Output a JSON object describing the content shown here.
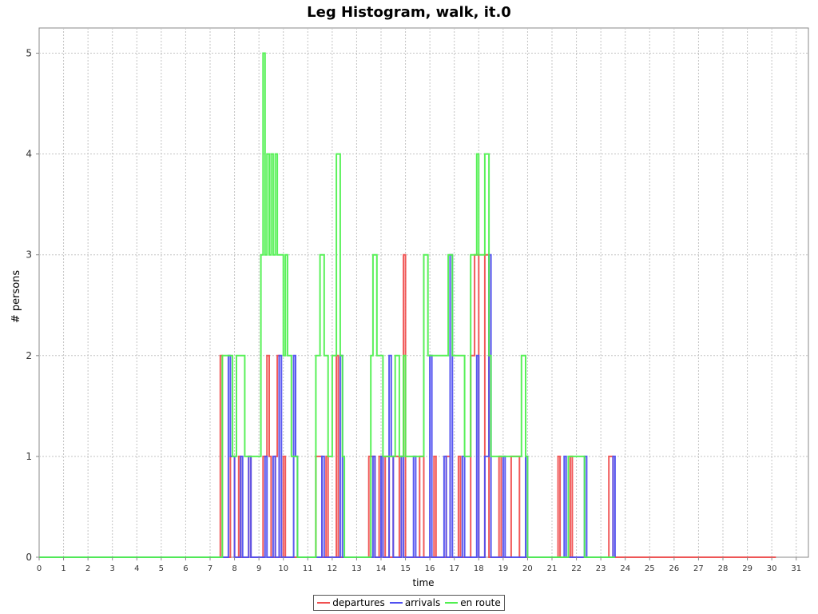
{
  "chart_data": {
    "type": "line",
    "step": true,
    "title": "Leg Histogram, walk, it.0",
    "xlabel": "time",
    "ylabel": "# persons",
    "xlim": [
      0,
      31.5
    ],
    "ylim": [
      0,
      5.25
    ],
    "xticks": [
      0,
      1,
      2,
      3,
      4,
      5,
      6,
      7,
      8,
      9,
      10,
      11,
      12,
      13,
      14,
      15,
      16,
      17,
      18,
      19,
      20,
      21,
      22,
      23,
      24,
      25,
      26,
      27,
      28,
      29,
      30,
      31
    ],
    "yticks": [
      0,
      1,
      2,
      3,
      4,
      5
    ],
    "grid": true,
    "legend_position": "bottom",
    "series": [
      {
        "name": "departures",
        "color": "#f05050",
        "points": [
          [
            0,
            0
          ],
          [
            7.42,
            2
          ],
          [
            7.5,
            0
          ],
          [
            7.83,
            1
          ],
          [
            8.0,
            0
          ],
          [
            8.17,
            1
          ],
          [
            8.25,
            0
          ],
          [
            8.58,
            1
          ],
          [
            8.67,
            0
          ],
          [
            9.17,
            1
          ],
          [
            9.33,
            2
          ],
          [
            9.42,
            1
          ],
          [
            9.5,
            0
          ],
          [
            9.67,
            1
          ],
          [
            9.75,
            2
          ],
          [
            9.83,
            0
          ],
          [
            10.0,
            1
          ],
          [
            10.08,
            0
          ],
          [
            11.33,
            1
          ],
          [
            11.58,
            0
          ],
          [
            11.75,
            1
          ],
          [
            11.83,
            0
          ],
          [
            12.17,
            2
          ],
          [
            12.25,
            0
          ],
          [
            13.5,
            1
          ],
          [
            13.75,
            0
          ],
          [
            13.92,
            1
          ],
          [
            14.08,
            0
          ],
          [
            14.17,
            1
          ],
          [
            14.33,
            0
          ],
          [
            14.5,
            1
          ],
          [
            14.75,
            0
          ],
          [
            14.83,
            1
          ],
          [
            14.92,
            3
          ],
          [
            15.0,
            0
          ],
          [
            15.58,
            1
          ],
          [
            15.75,
            0
          ],
          [
            16.17,
            1
          ],
          [
            16.25,
            0
          ],
          [
            16.67,
            1
          ],
          [
            16.83,
            0
          ],
          [
            17.17,
            1
          ],
          [
            17.25,
            0
          ],
          [
            17.67,
            2
          ],
          [
            17.83,
            3
          ],
          [
            18.0,
            0
          ],
          [
            18.25,
            3
          ],
          [
            18.42,
            0
          ],
          [
            18.83,
            1
          ],
          [
            18.92,
            0
          ],
          [
            19.33,
            1
          ],
          [
            19.67,
            0
          ],
          [
            21.25,
            1
          ],
          [
            21.33,
            0
          ],
          [
            21.75,
            1
          ],
          [
            21.83,
            0
          ],
          [
            23.33,
            1
          ],
          [
            23.5,
            0
          ],
          [
            30.17,
            0
          ]
        ]
      },
      {
        "name": "arrivals",
        "color": "#5050f0",
        "points": [
          [
            0,
            0
          ],
          [
            7.75,
            2
          ],
          [
            7.83,
            1
          ],
          [
            8.0,
            0
          ],
          [
            8.25,
            1
          ],
          [
            8.33,
            0
          ],
          [
            8.58,
            1
          ],
          [
            8.67,
            0
          ],
          [
            9.25,
            1
          ],
          [
            9.33,
            0
          ],
          [
            9.58,
            1
          ],
          [
            9.67,
            0
          ],
          [
            9.83,
            2
          ],
          [
            9.92,
            0
          ],
          [
            10.42,
            2
          ],
          [
            10.5,
            1
          ],
          [
            10.58,
            0
          ],
          [
            11.58,
            1
          ],
          [
            11.67,
            0
          ],
          [
            12.33,
            2
          ],
          [
            12.42,
            0
          ],
          [
            13.67,
            1
          ],
          [
            13.75,
            0
          ],
          [
            14.0,
            1
          ],
          [
            14.08,
            0
          ],
          [
            14.33,
            2
          ],
          [
            14.42,
            1
          ],
          [
            14.5,
            0
          ],
          [
            14.83,
            1
          ],
          [
            14.92,
            0
          ],
          [
            15.33,
            1
          ],
          [
            15.42,
            0
          ],
          [
            16.0,
            2
          ],
          [
            16.08,
            0
          ],
          [
            16.58,
            1
          ],
          [
            16.67,
            0
          ],
          [
            16.83,
            3
          ],
          [
            16.92,
            0
          ],
          [
            17.33,
            1
          ],
          [
            17.42,
            0
          ],
          [
            17.92,
            2
          ],
          [
            18.0,
            0
          ],
          [
            18.25,
            1
          ],
          [
            18.42,
            3
          ],
          [
            18.5,
            0
          ],
          [
            19.0,
            1
          ],
          [
            19.08,
            0
          ],
          [
            19.92,
            1
          ],
          [
            20.0,
            0
          ],
          [
            21.5,
            1
          ],
          [
            21.58,
            0
          ],
          [
            22.33,
            1
          ],
          [
            22.42,
            0
          ],
          [
            23.5,
            1
          ],
          [
            23.58,
            0
          ]
        ]
      },
      {
        "name": "en route",
        "color": "#50f050",
        "points": [
          [
            0,
            0
          ],
          [
            7.5,
            2
          ],
          [
            7.92,
            1
          ],
          [
            8.08,
            2
          ],
          [
            8.42,
            1
          ],
          [
            8.67,
            1
          ],
          [
            9.08,
            3
          ],
          [
            9.17,
            5
          ],
          [
            9.25,
            3
          ],
          [
            9.33,
            4
          ],
          [
            9.42,
            3
          ],
          [
            9.5,
            4
          ],
          [
            9.58,
            3
          ],
          [
            9.67,
            4
          ],
          [
            9.75,
            3
          ],
          [
            10.0,
            2
          ],
          [
            10.08,
            3
          ],
          [
            10.17,
            2
          ],
          [
            10.33,
            1
          ],
          [
            10.58,
            0
          ],
          [
            11.33,
            2
          ],
          [
            11.5,
            3
          ],
          [
            11.67,
            2
          ],
          [
            11.83,
            1
          ],
          [
            12.0,
            2
          ],
          [
            12.17,
            4
          ],
          [
            12.33,
            2
          ],
          [
            12.42,
            1
          ],
          [
            12.5,
            0
          ],
          [
            13.58,
            2
          ],
          [
            13.67,
            3
          ],
          [
            13.83,
            2
          ],
          [
            14.08,
            1
          ],
          [
            14.58,
            2
          ],
          [
            14.75,
            1
          ],
          [
            14.92,
            2
          ],
          [
            15.0,
            1
          ],
          [
            15.17,
            1
          ],
          [
            15.67,
            1
          ],
          [
            15.75,
            3
          ],
          [
            15.92,
            2
          ],
          [
            16.33,
            2
          ],
          [
            16.75,
            3
          ],
          [
            16.92,
            2
          ],
          [
            17.42,
            1
          ],
          [
            17.67,
            3
          ],
          [
            17.92,
            4
          ],
          [
            18.0,
            3
          ],
          [
            18.25,
            4
          ],
          [
            18.42,
            2
          ],
          [
            18.5,
            1
          ],
          [
            18.83,
            1
          ],
          [
            19.0,
            1
          ],
          [
            19.42,
            1
          ],
          [
            19.75,
            2
          ],
          [
            19.92,
            1
          ],
          [
            20.0,
            0
          ],
          [
            21.67,
            1
          ],
          [
            22.25,
            1
          ],
          [
            22.33,
            0
          ],
          [
            23.58,
            0
          ]
        ]
      }
    ]
  }
}
